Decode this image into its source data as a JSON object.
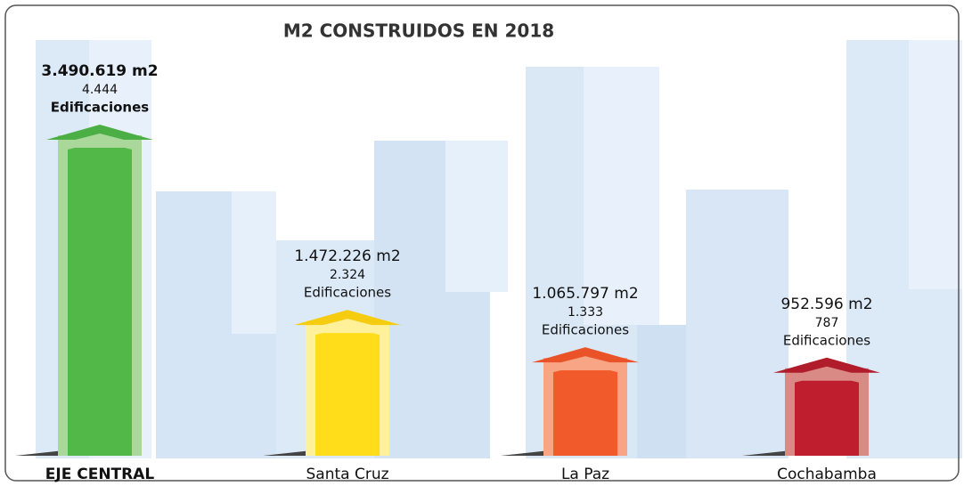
{
  "chart_data": {
    "type": "bar",
    "title": "M2 CONSTRUIDOS EN 2018",
    "categories": [
      "EJE CENTRAL",
      "Santa Cruz",
      "La Paz",
      "Cochabamba"
    ],
    "values": [
      3490619,
      1472226,
      1065797,
      952596
    ],
    "value_labels": [
      "3.490.619 m2",
      "1.472.226 m2",
      "1.065.797 m2",
      "952.596 m2"
    ],
    "counts": [
      4444,
      2324,
      1333,
      787
    ],
    "count_labels": [
      "4.444",
      "2.324",
      "1.333",
      "787"
    ],
    "count_unit": "Edificaciones",
    "colors": [
      "#52b847",
      "#ffdd1a",
      "#f15a2b",
      "#be1e2d"
    ],
    "edge_colors": [
      "#a9d89a",
      "#fff09a",
      "#f7a584",
      "#d98a84"
    ],
    "roof_colors": [
      "#4caf45",
      "#f5cc10",
      "#ea5327",
      "#b01c2b"
    ]
  }
}
